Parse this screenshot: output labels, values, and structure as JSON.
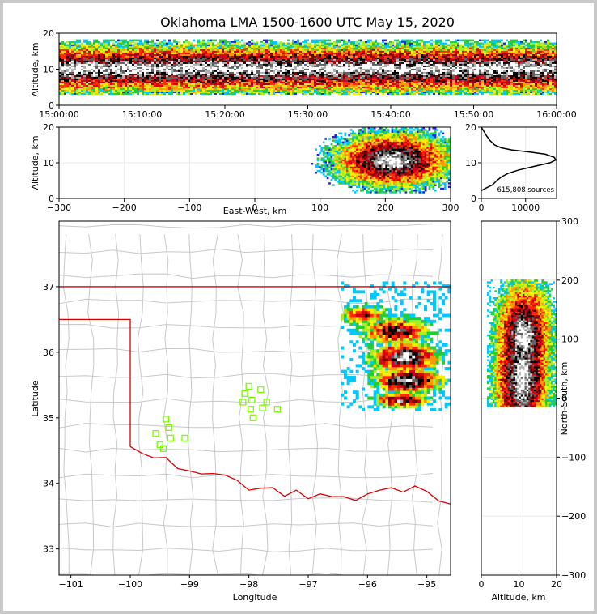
{
  "title": "Oklahoma LMA 1500-1600 UTC May 15, 2020",
  "colors": {
    "frame": "#c8c8c8",
    "state_border": "#d40000",
    "station": "#7cfc00",
    "density_scale": [
      "#2222dd",
      "#00c8ff",
      "#22cc33",
      "#a8ee22",
      "#ffee00",
      "#ff9900",
      "#ff2a00",
      "#d4001a",
      "#800000",
      "#000000",
      "#606060",
      "#b0b0b0",
      "#ffffff"
    ]
  },
  "panels": {
    "time_height": {
      "ylabel": "Altitude, km",
      "yticks": [
        "0",
        "10",
        "20"
      ],
      "xticks": [
        "15:00:00",
        "15:10:00",
        "15:20:00",
        "15:30:00",
        "15:40:00",
        "15:50:00",
        "16:00:00"
      ]
    },
    "ew_height": {
      "xlabel": "East-West, km",
      "ylabel": "Altitude, km",
      "xticks": [
        "−300",
        "−200",
        "−100",
        "0",
        "100",
        "200",
        "300"
      ],
      "yticks": [
        "0",
        "10",
        "20"
      ]
    },
    "histogram": {
      "xticks": [
        "0",
        "10000"
      ],
      "yticks": [
        "0",
        "10",
        "20"
      ],
      "annotation": "615,808 sources"
    },
    "plan": {
      "xlabel": "Longitude",
      "ylabel": "Latitude",
      "xticks": [
        "−101",
        "−100",
        "−99",
        "−98",
        "−97",
        "−96",
        "−95"
      ],
      "yticks": [
        "33",
        "34",
        "35",
        "36",
        "37"
      ]
    },
    "ns_height": {
      "xlabel": "Altitude, km",
      "ylabel": "North-South, km",
      "xticks": [
        "0",
        "10",
        "20"
      ],
      "yticks": [
        "−300",
        "−200",
        "−100",
        "0",
        "100",
        "200",
        "300"
      ]
    }
  },
  "chart_data": [
    {
      "type": "heatmap",
      "name": "time-height",
      "x_range": [
        "15:00:00",
        "16:00:00"
      ],
      "ylim": [
        0,
        20
      ],
      "band_km": [
        3,
        18
      ],
      "core_km": [
        8,
        12
      ]
    },
    {
      "type": "heatmap",
      "name": "east-west-height",
      "xlim": [
        -300,
        300
      ],
      "ylim": [
        0,
        20
      ],
      "cores": [
        {
          "x": 210,
          "z": 10.5
        }
      ],
      "extent_x": [
        80,
        300
      ]
    },
    {
      "type": "line",
      "name": "altitude-histogram",
      "xlim": [
        0,
        17000
      ],
      "ylim": [
        0,
        20
      ],
      "points": [
        [
          0,
          2.2
        ],
        [
          1200,
          3
        ],
        [
          2500,
          3.8
        ],
        [
          3500,
          5
        ],
        [
          4500,
          6
        ],
        [
          6000,
          7
        ],
        [
          8500,
          8
        ],
        [
          12000,
          9
        ],
        [
          15500,
          10
        ],
        [
          16800,
          10.8
        ],
        [
          16500,
          11.5
        ],
        [
          14500,
          12.4
        ],
        [
          11000,
          13
        ],
        [
          7000,
          13.6
        ],
        [
          4500,
          14.2
        ],
        [
          3000,
          15
        ],
        [
          2000,
          16.2
        ],
        [
          1200,
          17.5
        ],
        [
          500,
          19
        ],
        [
          0,
          20
        ]
      ]
    },
    {
      "type": "heatmap",
      "name": "plan-view",
      "xlim": [
        -101.2,
        -94.6
      ],
      "ylim": [
        32.6,
        38
      ],
      "cores": [
        {
          "lon": -95.6,
          "lat": 35.9
        },
        {
          "lon": -95.3,
          "lat": 35.55
        },
        {
          "lon": -95.4,
          "lat": 35.25
        }
      ],
      "stations": [
        [
          -98.0,
          35.48
        ],
        [
          -97.8,
          35.43
        ],
        [
          -98.07,
          35.37
        ],
        [
          -97.95,
          35.27
        ],
        [
          -98.1,
          35.24
        ],
        [
          -97.7,
          35.24
        ],
        [
          -97.97,
          35.13
        ],
        [
          -97.77,
          35.15
        ],
        [
          -97.52,
          35.13
        ],
        [
          -97.93,
          35.0
        ],
        [
          -99.4,
          34.98
        ],
        [
          -99.35,
          34.85
        ],
        [
          -99.57,
          34.76
        ],
        [
          -99.32,
          34.69
        ],
        [
          -99.08,
          34.69
        ],
        [
          -99.5,
          34.59
        ],
        [
          -99.44,
          34.53
        ]
      ]
    },
    {
      "type": "heatmap",
      "name": "north-south-height",
      "xlim": [
        0,
        20
      ],
      "ylim": [
        -300,
        300
      ],
      "extent_y": [
        -15,
        200
      ],
      "cores": [
        {
          "y": 100,
          "z": 11
        },
        {
          "y": 45,
          "z": 10.5
        },
        {
          "y": 25,
          "z": 10.5
        }
      ]
    }
  ]
}
